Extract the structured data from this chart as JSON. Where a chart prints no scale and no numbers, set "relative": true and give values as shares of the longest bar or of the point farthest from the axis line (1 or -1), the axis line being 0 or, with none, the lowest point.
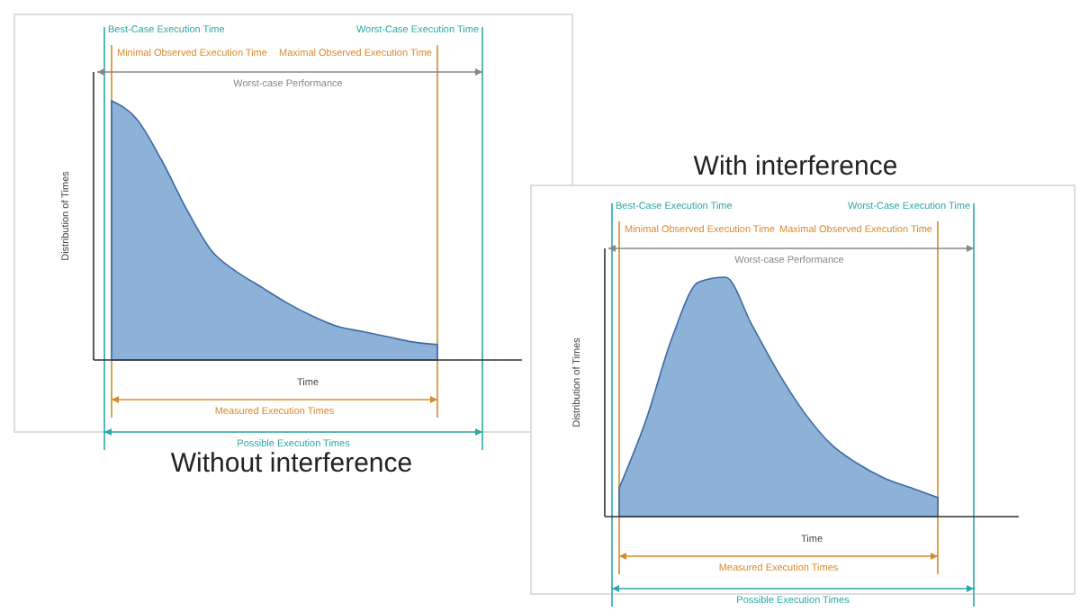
{
  "chart_data": [
    {
      "type": "area",
      "subtitle": "Without interference",
      "xlabel": "Time",
      "ylabel": "Distribution of Times",
      "relative": true,
      "color": "#7aa3d1",
      "categories": [
        null,
        null,
        null,
        null,
        null,
        null,
        null,
        null,
        null,
        null,
        null,
        null,
        null,
        null
      ],
      "values": [
        1.0,
        0.93,
        0.77,
        0.58,
        0.42,
        0.34,
        0.28,
        0.22,
        0.17,
        0.13,
        0.11,
        0.09,
        0.07,
        0.06
      ],
      "annotations": [
        "Best-Case Execution Time",
        "Worst-Case Execution Time",
        "Minimal Observed Execution Time",
        "Maximal Observed Execution Time",
        "Worst-case Performance",
        "Measured Execution Times",
        "Possible Execution Times"
      ]
    },
    {
      "type": "area",
      "subtitle": "With interference",
      "xlabel": "Time",
      "ylabel": "Distribution of Times",
      "relative": true,
      "color": "#7aa3d1",
      "categories": [
        null,
        null,
        null,
        null,
        null,
        null,
        null,
        null,
        null,
        null,
        null,
        null,
        null
      ],
      "values": [
        0.12,
        0.4,
        0.75,
        0.98,
        1.0,
        0.8,
        0.6,
        0.43,
        0.3,
        0.22,
        0.16,
        0.12,
        0.08
      ],
      "annotations": [
        "Best-Case Execution Time",
        "Worst-Case Execution Time",
        "Minimal Observed Execution Time",
        "Maximal Observed Execution Time",
        "Worst-case Performance",
        "Measured Execution Times",
        "Possible Execution Times"
      ]
    }
  ]
}
